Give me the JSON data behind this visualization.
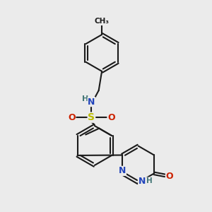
{
  "bg_color": "#ebebeb",
  "bond_color": "#1a1a1a",
  "bond_width": 1.5,
  "atom_colors": {
    "N": "#2244bb",
    "O": "#cc2200",
    "S": "#bbbb00",
    "H": "#447777",
    "C": "#1a1a1a"
  }
}
